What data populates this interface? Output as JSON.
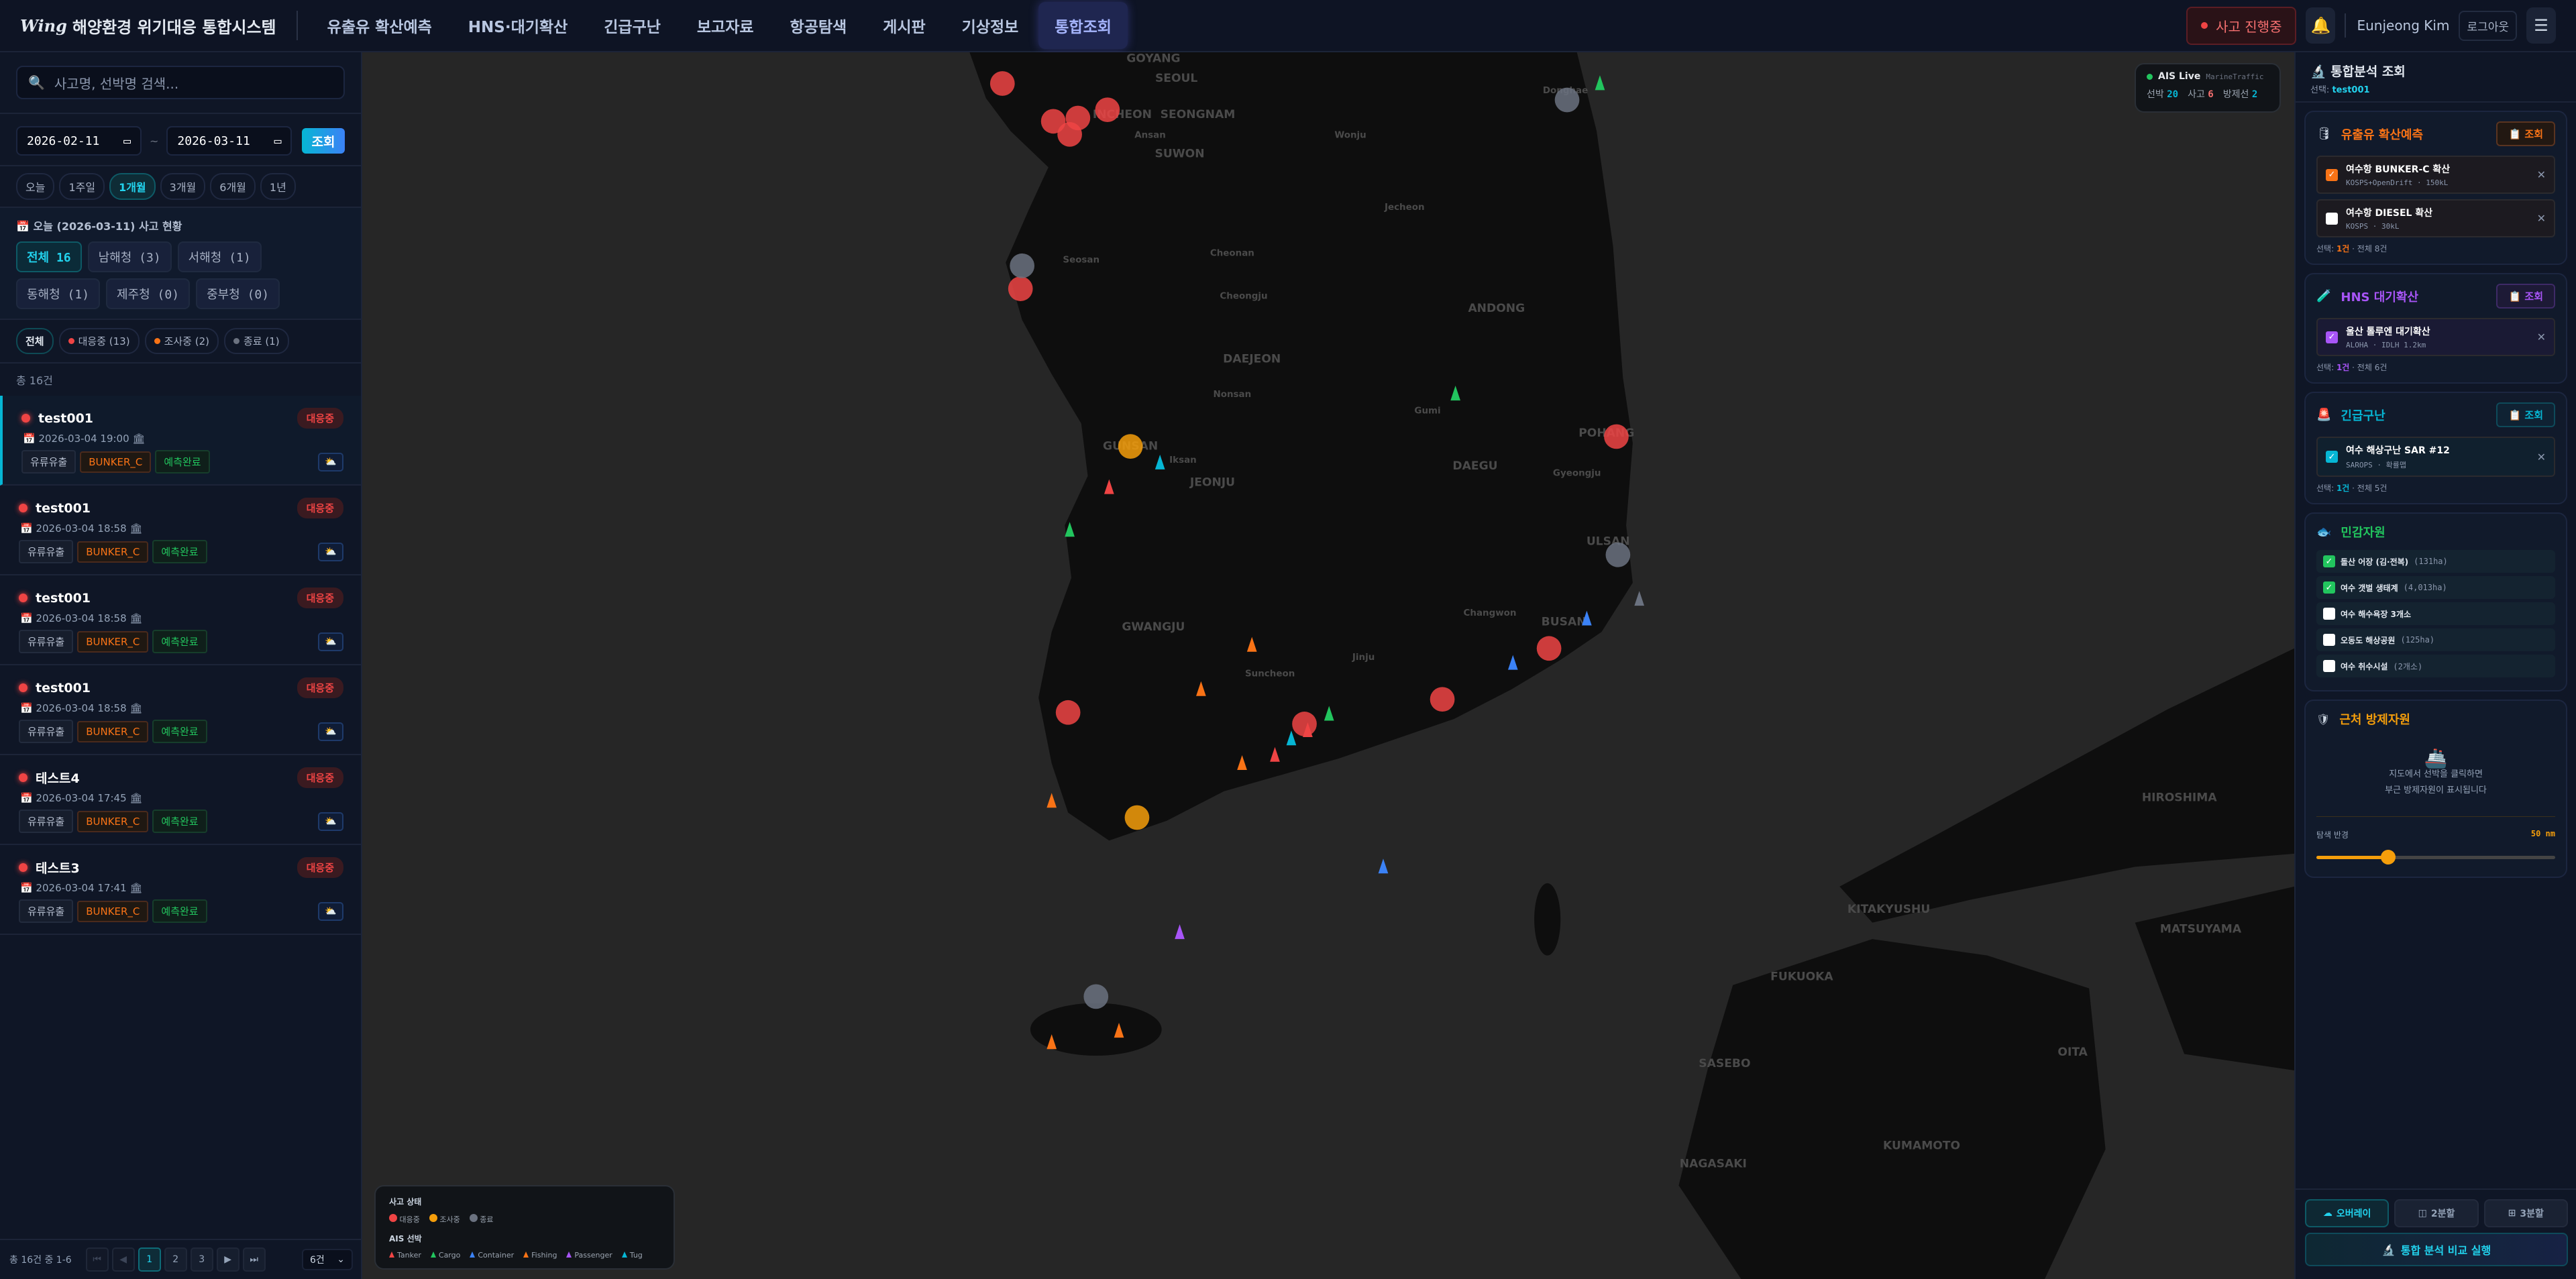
{
  "header": {
    "logo_mark": "Wing",
    "app_title": "해양환경 위기대응 통합시스템",
    "nav": [
      "유출유 확산예측",
      "HNS·대기확산",
      "긴급구난",
      "보고자료",
      "항공탐색",
      "게시판",
      "기상정보",
      "통합조회"
    ],
    "active_nav": "통합조회",
    "incident_status": "사고 진행중",
    "user": "Eunjeong Kim",
    "logout": "로그아웃"
  },
  "left": {
    "search_placeholder": "사고명, 선박명 검색...",
    "date_from": "2026-02-11",
    "date_sep": "~",
    "date_to": "2026-03-11",
    "query": "조회",
    "periods": [
      "오늘",
      "1주일",
      "1개월",
      "3개월",
      "6개월",
      "1년"
    ],
    "active_period": "1개월",
    "today_title": "오늘 (2026-03-11) 사고 현황",
    "regions": [
      "전체 16",
      "남해청 (3)",
      "서해청 (1)",
      "동해청 (1)",
      "제주청 (0)",
      "중부청 (0)"
    ],
    "status_filters": [
      {
        "label": "전체",
        "color": ""
      },
      {
        "label": "대응중 (13)",
        "color": "#ef4444"
      },
      {
        "label": "조사중 (2)",
        "color": "#f97316"
      },
      {
        "label": "종료 (1)",
        "color": "#6b7280"
      }
    ],
    "total": "총 16건",
    "incidents": [
      {
        "name": "test001",
        "status": "대응중",
        "datetime": "2026-03-04 19:00",
        "type": "유류유출",
        "oil": "BUNKER_C",
        "prediction": "예측완료"
      },
      {
        "name": "test001",
        "status": "대응중",
        "datetime": "2026-03-04 18:58",
        "type": "유류유출",
        "oil": "BUNKER_C",
        "prediction": "예측완료"
      },
      {
        "name": "test001",
        "status": "대응중",
        "datetime": "2026-03-04 18:58",
        "type": "유류유출",
        "oil": "BUNKER_C",
        "prediction": "예측완료"
      },
      {
        "name": "test001",
        "status": "대응중",
        "datetime": "2026-03-04 18:58",
        "type": "유류유출",
        "oil": "BUNKER_C",
        "prediction": "예측완료"
      },
      {
        "name": "테스트4",
        "status": "대응중",
        "datetime": "2026-03-04 17:45",
        "type": "유류유출",
        "oil": "BUNKER_C",
        "prediction": "예측완료"
      },
      {
        "name": "테스트3",
        "status": "대응중",
        "datetime": "2026-03-04 17:41",
        "type": "유류유출",
        "oil": "BUNKER_C",
        "prediction": "예측완료"
      }
    ],
    "pagination": {
      "info": "총 16건 중 1-6",
      "pages": [
        "1",
        "2",
        "3"
      ],
      "current": "1",
      "page_size": "6건"
    }
  },
  "map": {
    "ais": {
      "title": "AIS Live",
      "source": "MarineTraffic",
      "vessels_label": "선박",
      "vessels": "20",
      "incidents_label": "사고",
      "incidents": "6",
      "response_label": "방제선",
      "response": "2"
    },
    "city_labels": [
      "GOYANG",
      "SEOUL",
      "INCHEON",
      "SEONGNAM",
      "Ansan",
      "SUWON",
      "Wonju",
      "Donghae",
      "Jecheon",
      "Seosan",
      "Cheonan",
      "Cheongju",
      "ANDONG",
      "DAEJEON",
      "Nonsan",
      "Gumi",
      "POHANG",
      "GUNSAN",
      "Iksan",
      "JEONJU",
      "DAEGU",
      "Gyeongju",
      "ULSAN",
      "Changwon",
      "BUSAN",
      "GWANGJU",
      "Suncheon",
      "Jinju",
      "HIROSHIMA",
      "KITAKYUSHU",
      "FUKUOKA",
      "MATSUYAMA",
      "SASEBO",
      "OITA",
      "NAGASAKI",
      "KUMAMOTO"
    ],
    "legend": {
      "incident_title": "사고 상태",
      "incident_states": [
        {
          "label": "대응중",
          "color": "#ef4444"
        },
        {
          "label": "조사중",
          "color": "#f59e0b"
        },
        {
          "label": "종료",
          "color": "#6b7280"
        }
      ],
      "ais_title": "AIS 선박",
      "vessel_types": [
        {
          "label": "Tanker",
          "color": "#ef4444"
        },
        {
          "label": "Cargo",
          "color": "#22c55e"
        },
        {
          "label": "Container",
          "color": "#3b82f6"
        },
        {
          "label": "Fishing",
          "color": "#f97316"
        },
        {
          "label": "Passenger",
          "color": "#a855f7"
        },
        {
          "label": "Tug",
          "color": "#06b6d4"
        }
      ]
    }
  },
  "right": {
    "title": "통합분석 조회",
    "selected_label": "선택:",
    "selected": "test001",
    "oil": {
      "title": "유출유 확산예측",
      "btn": "조회",
      "color": "#f97316",
      "entries": [
        {
          "title": "여수항 BUNKER-C 확산",
          "sub": "KOSPS+OpenDrift · 150kL",
          "checked": true
        },
        {
          "title": "여수항 DIESEL 확산",
          "sub": "KOSPS · 30kL",
          "checked": false
        }
      ],
      "foot_label": "선택:",
      "foot_count": "1건",
      "foot_total": "· 전체 8건"
    },
    "hns": {
      "title": "HNS 대기확산",
      "btn": "조회",
      "color": "#a855f7",
      "entries": [
        {
          "title": "울산 톨루엔 대기확산",
          "sub": "ALOHA · IDLH 1.2km",
          "checked": true
        }
      ],
      "foot_label": "선택:",
      "foot_count": "1건",
      "foot_total": "· 전체 6건"
    },
    "sar": {
      "title": "긴급구난",
      "btn": "조회",
      "color": "#06b6d4",
      "entries": [
        {
          "title": "여수 해상구난 SAR #12",
          "sub": "SAROPS · 확률맵",
          "checked": true
        }
      ],
      "foot_label": "선택:",
      "foot_count": "1건",
      "foot_total": "· 전체 5건"
    },
    "sensitive": {
      "title": "민감자원",
      "color": "#22c55e",
      "items": [
        {
          "name": "돌산 어장 (김·전복)",
          "extra": "(131ha)",
          "checked": true
        },
        {
          "name": "여수 갯벌 생태계",
          "extra": "(4,013ha)",
          "checked": true
        },
        {
          "name": "여수 해수욕장 3개소",
          "extra": "",
          "checked": false
        },
        {
          "name": "오동도 해상공원",
          "extra": "(125ha)",
          "checked": false
        },
        {
          "name": "여수 취수시설",
          "extra": "(2개소)",
          "checked": false
        }
      ]
    },
    "nearby": {
      "title": "근처 방제자원",
      "color": "#f59e0b",
      "empty_line1": "지도에서 선박을 클릭하면",
      "empty_line2": "부근 방제자원이 표시됩니다",
      "radius_label": "탐색 반경",
      "radius_value": "50 nm",
      "radius_fraction": 0.3
    },
    "views": [
      "오버레이",
      "2분할",
      "3분할"
    ],
    "active_view": "오버레이",
    "run": "통합 분석 비교 실행"
  }
}
